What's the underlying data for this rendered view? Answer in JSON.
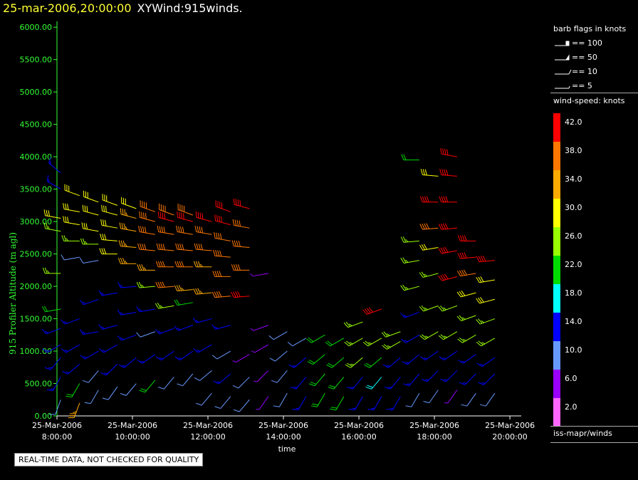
{
  "header": {
    "date_text": "25-mar-2006,20:00:00",
    "plot_name": "XYWind:915winds."
  },
  "notice": "REAL-TIME DATA, NOT CHECKED FOR QUALITY",
  "legend": {
    "barb_title": "barb flags in knots",
    "barb_flags": [
      "== 100",
      "== 50",
      "== 10",
      "== 5"
    ],
    "speed_title": "wind-speed: knots",
    "speed_scale": [
      {
        "label": "42.0",
        "color": "#ff0000"
      },
      {
        "label": "38.0",
        "color": "#ff7700"
      },
      {
        "label": "34.0",
        "color": "#ffaa00"
      },
      {
        "label": "30.0",
        "color": "#ffff00"
      },
      {
        "label": "26.0",
        "color": "#99ff00"
      },
      {
        "label": "22.0",
        "color": "#00dd00"
      },
      {
        "label": "18.0",
        "color": "#00ffff"
      },
      {
        "label": "14.0",
        "color": "#0000ff"
      },
      {
        "label": "10.0",
        "color": "#6699ff"
      },
      {
        "label": "6.0",
        "color": "#9900ff"
      },
      {
        "label": "2.0",
        "color": "#ff66ff"
      }
    ],
    "source": "iss-mapr/winds"
  },
  "chart_data": {
    "type": "scatter",
    "title": "25-mar-2006,20:00:00 XYWind:915winds.",
    "xlabel": "time",
    "ylabel": "915 Profiler Altitude (m agl)",
    "x_ticks": [
      [
        "25-Mar-2006",
        "8:00:00"
      ],
      [
        "25-Mar-2006",
        "10:00:00"
      ],
      [
        "25-Mar-2006",
        "12:00:00"
      ],
      [
        "25-Mar-2006",
        "14:00:00"
      ],
      [
        "25-Mar-2006",
        "16:00:00"
      ],
      [
        "25-Mar-2006",
        "18:00:00"
      ],
      [
        "25-Mar-2006",
        "20:00:00"
      ]
    ],
    "x_tick_hours": [
      8,
      10,
      12,
      14,
      16,
      18,
      20
    ],
    "xlim_hours": [
      8,
      20.3
    ],
    "y_ticks": [
      "0.00",
      "500.00",
      "1000.00",
      "1500.00",
      "2000.00",
      "2500.00",
      "3000.00",
      "3500.00",
      "4000.00",
      "4500.00",
      "5000.00",
      "5500.00",
      "6000.00"
    ],
    "ylim": [
      0,
      6200
    ],
    "speed_unit": "knots",
    "profiles": [
      {
        "hour": 8.1,
        "points": [
          [
            250,
            10,
            200
          ],
          [
            600,
            14,
            210
          ],
          [
            900,
            14,
            220
          ],
          [
            1100,
            14,
            240
          ],
          [
            1350,
            14,
            250
          ],
          [
            1650,
            22,
            260
          ],
          [
            2200,
            26,
            270
          ],
          [
            2850,
            26,
            280
          ],
          [
            3050,
            28,
            280
          ],
          [
            3500,
            14,
            300
          ],
          [
            3750,
            14,
            310
          ]
        ]
      },
      {
        "hour": 8.6,
        "points": [
          [
            200,
            34,
            200
          ],
          [
            500,
            22,
            210
          ],
          [
            800,
            14,
            230
          ],
          [
            1100,
            14,
            240
          ],
          [
            1500,
            14,
            250
          ],
          [
            2450,
            8,
            260
          ],
          [
            2700,
            26,
            270
          ],
          [
            2950,
            30,
            280
          ],
          [
            3150,
            30,
            280
          ],
          [
            3400,
            30,
            290
          ]
        ]
      },
      {
        "hour": 9.1,
        "points": [
          [
            400,
            10,
            210
          ],
          [
            700,
            10,
            220
          ],
          [
            1000,
            14,
            240
          ],
          [
            1300,
            14,
            260
          ],
          [
            1800,
            14,
            250
          ],
          [
            2400,
            8,
            260
          ],
          [
            2650,
            26,
            270
          ],
          [
            2850,
            30,
            280
          ],
          [
            3100,
            30,
            285
          ],
          [
            3300,
            30,
            290
          ]
        ]
      },
      {
        "hour": 9.6,
        "points": [
          [
            450,
            10,
            215
          ],
          [
            800,
            14,
            225
          ],
          [
            1100,
            14,
            240
          ],
          [
            1400,
            14,
            255
          ],
          [
            1900,
            14,
            260
          ],
          [
            2500,
            30,
            270
          ],
          [
            2700,
            30,
            275
          ],
          [
            2900,
            30,
            280
          ],
          [
            3100,
            30,
            285
          ],
          [
            3250,
            30,
            290
          ]
        ]
      },
      {
        "hour": 10.1,
        "points": [
          [
            500,
            10,
            220
          ],
          [
            900,
            14,
            230
          ],
          [
            1250,
            14,
            250
          ],
          [
            1600,
            14,
            260
          ],
          [
            2000,
            14,
            265
          ],
          [
            2350,
            34,
            270
          ],
          [
            2600,
            34,
            275
          ],
          [
            2850,
            34,
            280
          ],
          [
            3050,
            34,
            285
          ],
          [
            3200,
            30,
            290
          ]
        ]
      },
      {
        "hour": 10.6,
        "points": [
          [
            550,
            22,
            220
          ],
          [
            950,
            14,
            235
          ],
          [
            1300,
            10,
            250
          ],
          [
            1650,
            14,
            260
          ],
          [
            2000,
            26,
            265
          ],
          [
            2250,
            34,
            270
          ],
          [
            2550,
            38,
            275
          ],
          [
            2800,
            38,
            280
          ],
          [
            3000,
            38,
            285
          ],
          [
            3150,
            38,
            290
          ]
        ]
      },
      {
        "hour": 11.1,
        "points": [
          [
            600,
            10,
            220
          ],
          [
            1000,
            14,
            235
          ],
          [
            1350,
            14,
            250
          ],
          [
            1700,
            26,
            260
          ],
          [
            2000,
            38,
            265
          ],
          [
            2300,
            38,
            270
          ],
          [
            2550,
            38,
            275
          ],
          [
            2800,
            38,
            280
          ],
          [
            3000,
            42,
            285
          ],
          [
            3100,
            38,
            290
          ]
        ]
      },
      {
        "hour": 11.6,
        "points": [
          [
            650,
            10,
            220
          ],
          [
            1000,
            14,
            235
          ],
          [
            1400,
            14,
            250
          ],
          [
            1750,
            22,
            260
          ],
          [
            1950,
            34,
            265
          ],
          [
            2300,
            38,
            270
          ],
          [
            2550,
            38,
            275
          ],
          [
            2800,
            38,
            280
          ],
          [
            3000,
            42,
            285
          ],
          [
            3100,
            38,
            290
          ]
        ]
      },
      {
        "hour": 12.1,
        "points": [
          [
            350,
            10,
            220
          ],
          [
            700,
            10,
            230
          ],
          [
            1100,
            14,
            240
          ],
          [
            1500,
            14,
            255
          ],
          [
            1900,
            34,
            265
          ],
          [
            2300,
            34,
            270
          ],
          [
            2550,
            38,
            275
          ],
          [
            2800,
            38,
            280
          ],
          [
            3000,
            42,
            285
          ]
        ]
      },
      {
        "hour": 12.6,
        "points": [
          [
            300,
            10,
            220
          ],
          [
            650,
            14,
            230
          ],
          [
            1000,
            10,
            240
          ],
          [
            1400,
            14,
            255
          ],
          [
            1850,
            38,
            265
          ],
          [
            2150,
            38,
            270
          ],
          [
            2450,
            38,
            275
          ],
          [
            2700,
            38,
            280
          ],
          [
            2950,
            42,
            285
          ],
          [
            3150,
            42,
            290
          ]
        ]
      },
      {
        "hour": 13.1,
        "points": [
          [
            250,
            10,
            220
          ],
          [
            600,
            10,
            225
          ],
          [
            950,
            6,
            240
          ],
          [
            1850,
            42,
            265
          ],
          [
            2250,
            38,
            270
          ],
          [
            2600,
            38,
            275
          ],
          [
            2900,
            38,
            280
          ],
          [
            3200,
            42,
            285
          ]
        ]
      },
      {
        "hour": 13.6,
        "points": [
          [
            300,
            6,
            215
          ],
          [
            700,
            6,
            225
          ],
          [
            1100,
            6,
            240
          ],
          [
            1400,
            6,
            250
          ],
          [
            2200,
            6,
            260
          ]
        ]
      },
      {
        "hour": 14.1,
        "points": [
          [
            350,
            10,
            210
          ],
          [
            700,
            10,
            220
          ],
          [
            1000,
            10,
            230
          ],
          [
            1300,
            10,
            240
          ]
        ]
      },
      {
        "hour": 14.6,
        "points": [
          [
            300,
            14,
            210
          ],
          [
            600,
            14,
            220
          ],
          [
            900,
            14,
            230
          ],
          [
            1200,
            10,
            240
          ]
        ]
      },
      {
        "hour": 15.1,
        "points": [
          [
            350,
            22,
            210
          ],
          [
            650,
            22,
            220
          ],
          [
            950,
            22,
            230
          ],
          [
            1250,
            22,
            240
          ]
        ]
      },
      {
        "hour": 15.6,
        "points": [
          [
            300,
            22,
            210
          ],
          [
            600,
            22,
            220
          ],
          [
            900,
            22,
            230
          ],
          [
            1200,
            22,
            240
          ]
        ]
      },
      {
        "hour": 16.1,
        "points": [
          [
            300,
            14,
            210
          ],
          [
            600,
            14,
            220
          ],
          [
            900,
            26,
            230
          ],
          [
            1200,
            26,
            240
          ],
          [
            1450,
            26,
            250
          ]
        ]
      },
      {
        "hour": 16.6,
        "points": [
          [
            300,
            14,
            210
          ],
          [
            600,
            18,
            220
          ],
          [
            900,
            22,
            230
          ],
          [
            1200,
            26,
            240
          ],
          [
            1650,
            42,
            250
          ]
        ]
      },
      {
        "hour": 17.1,
        "points": [
          [
            300,
            14,
            210
          ],
          [
            600,
            14,
            220
          ],
          [
            900,
            14,
            230
          ],
          [
            1150,
            26,
            240
          ],
          [
            1300,
            26,
            250
          ]
        ]
      },
      {
        "hour": 17.6,
        "points": [
          [
            350,
            10,
            210
          ],
          [
            650,
            14,
            220
          ],
          [
            950,
            14,
            230
          ],
          [
            1250,
            14,
            240
          ],
          [
            1600,
            14,
            250
          ],
          [
            2000,
            26,
            255
          ],
          [
            2400,
            26,
            260
          ],
          [
            2700,
            26,
            265
          ],
          [
            3950,
            22,
            270
          ]
        ]
      },
      {
        "hour": 18.1,
        "points": [
          [
            400,
            10,
            215
          ],
          [
            700,
            14,
            225
          ],
          [
            1000,
            14,
            235
          ],
          [
            1300,
            26,
            240
          ],
          [
            1700,
            26,
            250
          ],
          [
            2200,
            26,
            255
          ],
          [
            2600,
            30,
            260
          ],
          [
            2900,
            38,
            265
          ],
          [
            3300,
            42,
            270
          ],
          [
            3700,
            30,
            275
          ]
        ]
      },
      {
        "hour": 18.6,
        "points": [
          [
            400,
            6,
            215
          ],
          [
            700,
            14,
            225
          ],
          [
            1000,
            14,
            235
          ],
          [
            1300,
            26,
            240
          ],
          [
            1700,
            26,
            250
          ],
          [
            2150,
            42,
            255
          ],
          [
            2550,
            42,
            260
          ],
          [
            2900,
            42,
            265
          ],
          [
            3300,
            42,
            270
          ],
          [
            3700,
            42,
            275
          ],
          [
            4000,
            42,
            280
          ]
        ]
      },
      {
        "hour": 19.1,
        "points": [
          [
            350,
            10,
            215
          ],
          [
            650,
            14,
            225
          ],
          [
            950,
            14,
            235
          ],
          [
            1250,
            26,
            240
          ],
          [
            1550,
            26,
            250
          ],
          [
            1900,
            30,
            255
          ],
          [
            2200,
            38,
            260
          ],
          [
            2450,
            42,
            265
          ],
          [
            2700,
            42,
            270
          ]
        ]
      },
      {
        "hour": 19.6,
        "points": [
          [
            350,
            10,
            215
          ],
          [
            650,
            14,
            225
          ],
          [
            900,
            14,
            235
          ],
          [
            1200,
            26,
            240
          ],
          [
            1500,
            26,
            250
          ],
          [
            1800,
            30,
            255
          ],
          [
            2100,
            30,
            260
          ],
          [
            2400,
            42,
            265
          ]
        ]
      }
    ]
  }
}
